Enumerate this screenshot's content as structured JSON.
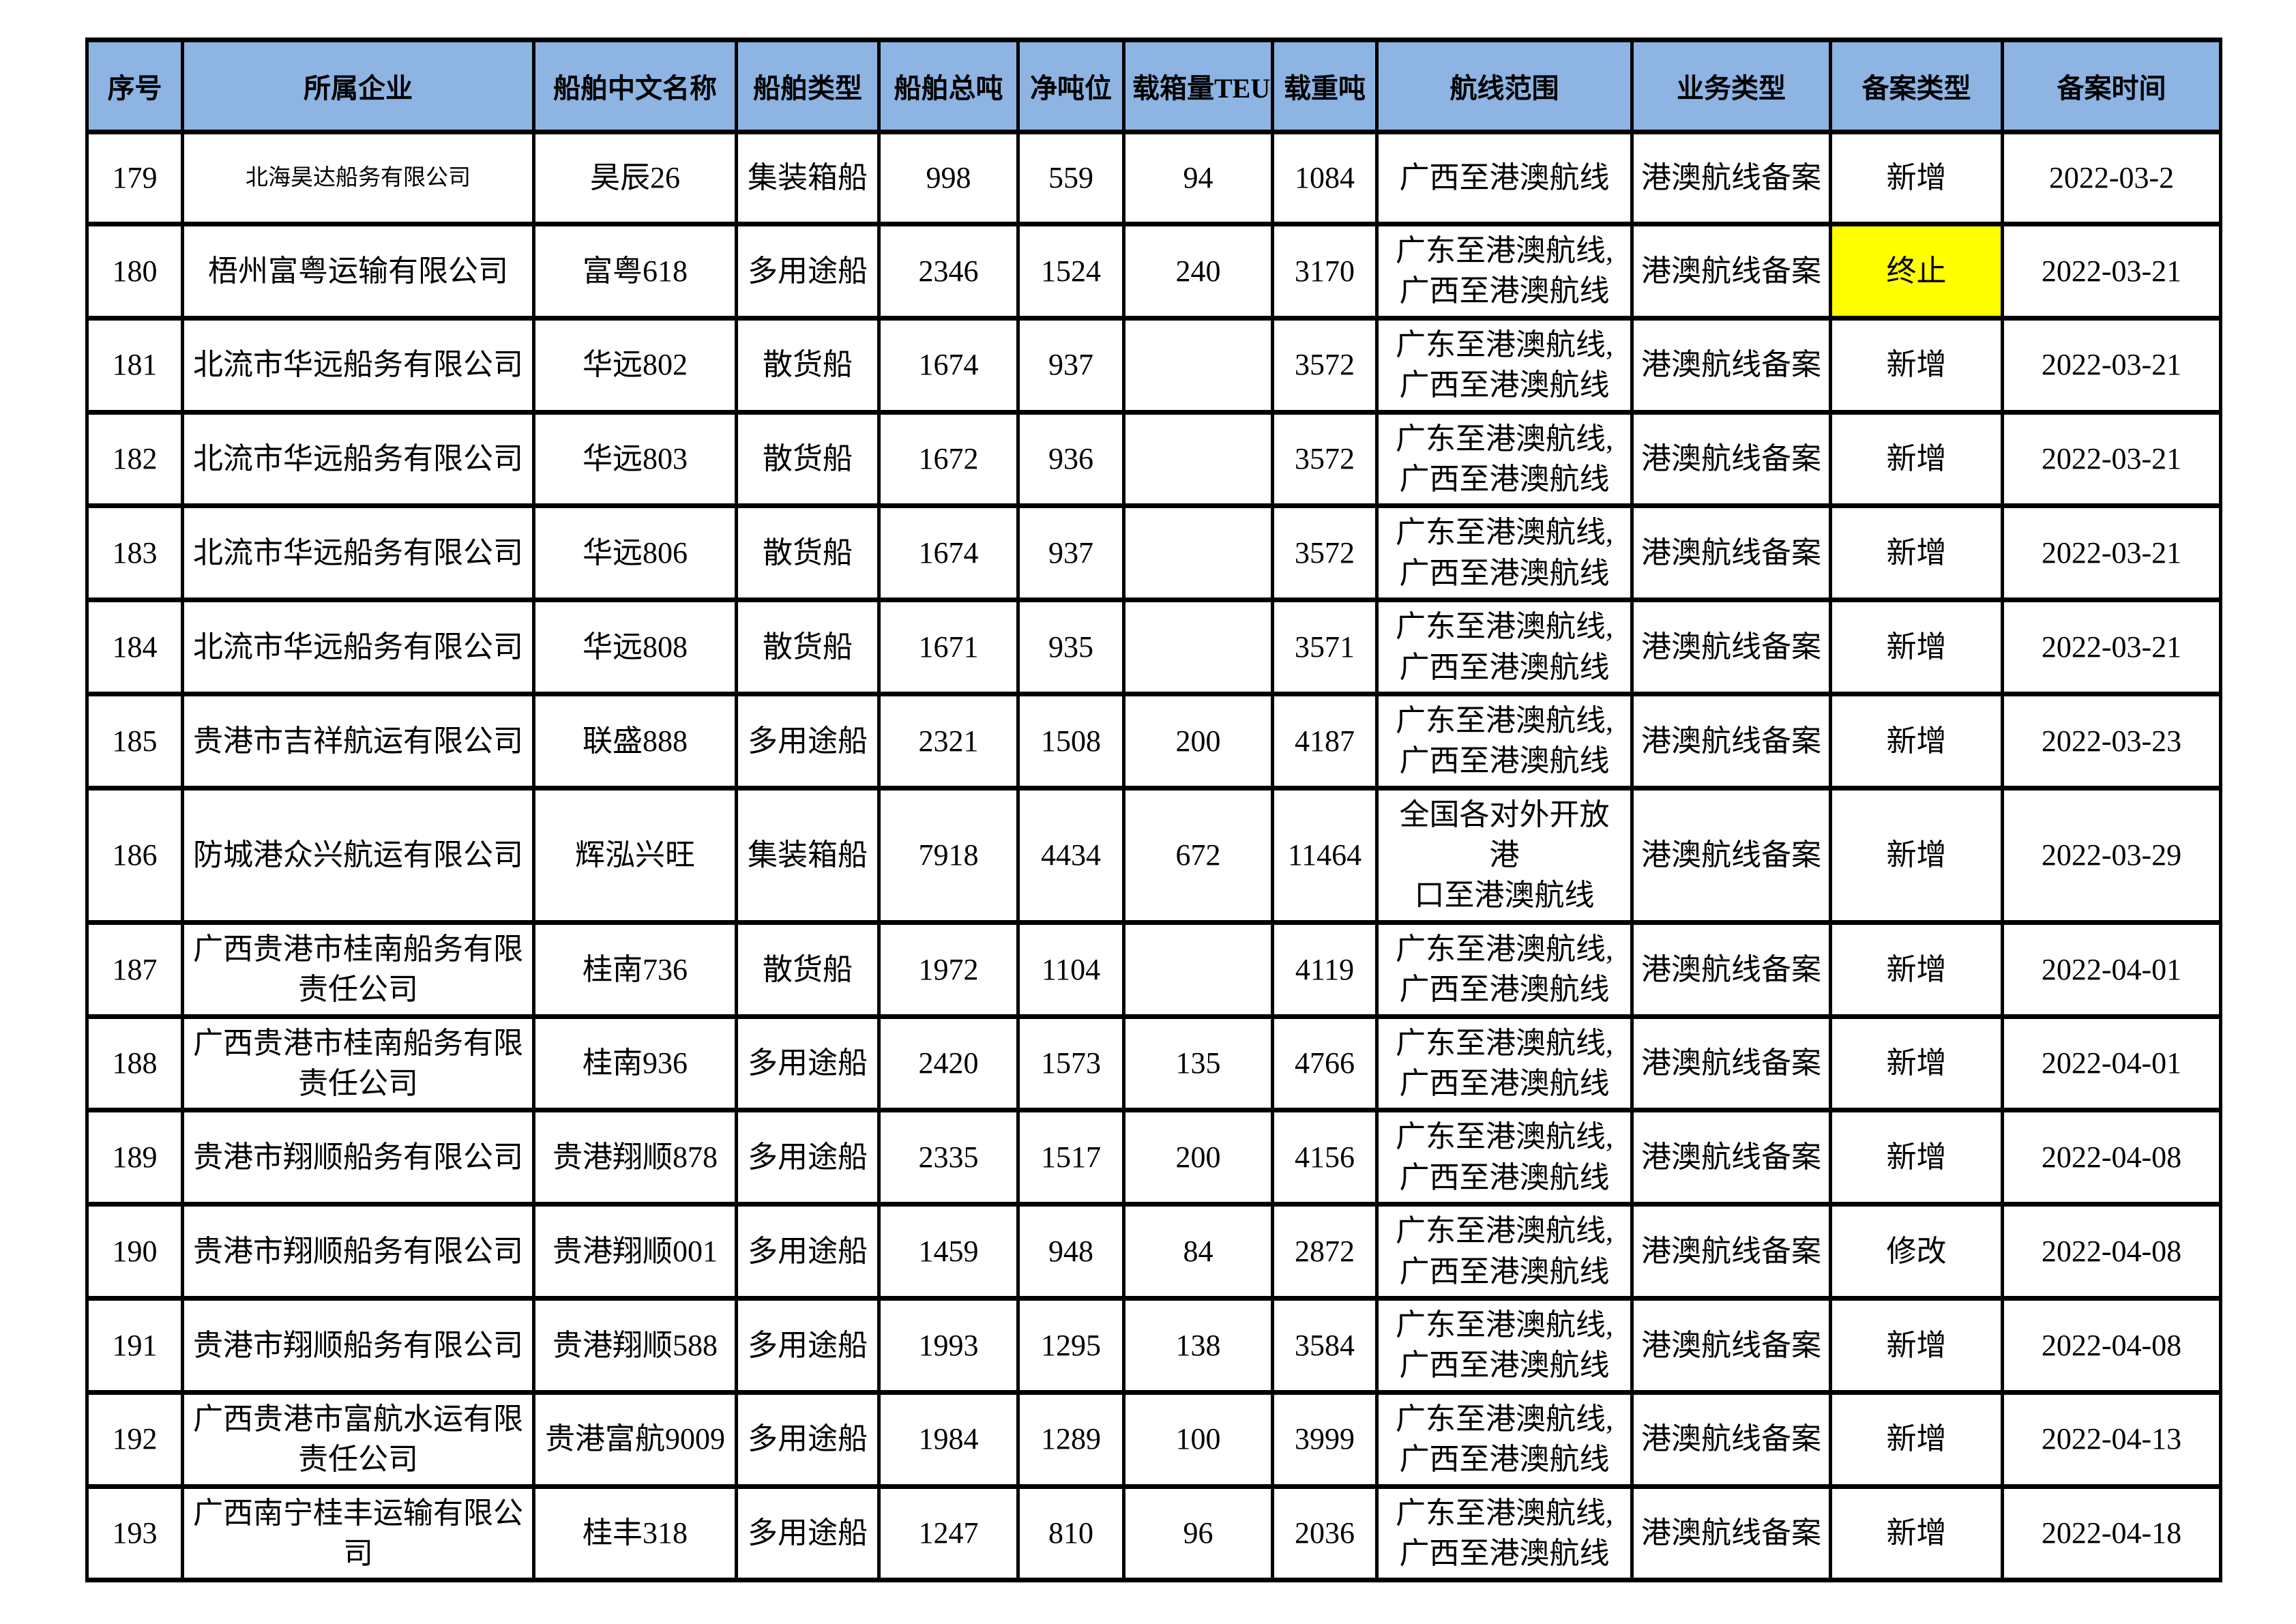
{
  "table": {
    "header_bg": "#8DB4E2",
    "highlight_color": "#FFFF00",
    "headers": [
      {
        "key": "seq",
        "label": "序号"
      },
      {
        "key": "company",
        "label": "所属企业"
      },
      {
        "key": "ship_name",
        "label": "船舶中文名称"
      },
      {
        "key": "ship_type",
        "label": "船舶类型"
      },
      {
        "key": "gross_tonnage",
        "label": "船舶总吨"
      },
      {
        "key": "net_tonnage",
        "label": "净吨位"
      },
      {
        "key": "teu",
        "label": "载箱量TEU"
      },
      {
        "key": "deadweight",
        "label": "载重吨"
      },
      {
        "key": "route",
        "label": "航线范围"
      },
      {
        "key": "business_type",
        "label": "业务类型"
      },
      {
        "key": "filing_type",
        "label": "备案类型"
      },
      {
        "key": "filing_date",
        "label": "备案时间"
      }
    ],
    "rows": [
      {
        "seq": "179",
        "company": "北海昊达船务有限公司",
        "company_small": true,
        "ship_name": "昊辰26",
        "ship_type": "集装箱船",
        "gross_tonnage": "998",
        "net_tonnage": "559",
        "teu": "94",
        "deadweight": "1084",
        "route": "广西至港澳航线",
        "business_type": "港澳航线备案",
        "filing_type": "新增",
        "filing_highlight": false,
        "filing_date": "2022-03-2"
      },
      {
        "seq": "180",
        "company": "梧州富粤运输有限公司",
        "company_small": false,
        "ship_name": "富粤618",
        "ship_type": "多用途船",
        "gross_tonnage": "2346",
        "net_tonnage": "1524",
        "teu": "240",
        "deadweight": "3170",
        "route": "广东至港澳航线,\n广西至港澳航线",
        "business_type": "港澳航线备案",
        "filing_type": "终止",
        "filing_highlight": true,
        "filing_date": "2022-03-21"
      },
      {
        "seq": "181",
        "company": "北流市华远船务有限公司",
        "company_small": false,
        "ship_name": "华远802",
        "ship_type": "散货船",
        "gross_tonnage": "1674",
        "net_tonnage": "937",
        "teu": "",
        "deadweight": "3572",
        "route": "广东至港澳航线,\n广西至港澳航线",
        "business_type": "港澳航线备案",
        "filing_type": "新增",
        "filing_highlight": false,
        "filing_date": "2022-03-21"
      },
      {
        "seq": "182",
        "company": "北流市华远船务有限公司",
        "company_small": false,
        "ship_name": "华远803",
        "ship_type": "散货船",
        "gross_tonnage": "1672",
        "net_tonnage": "936",
        "teu": "",
        "deadweight": "3572",
        "route": "广东至港澳航线,\n广西至港澳航线",
        "business_type": "港澳航线备案",
        "filing_type": "新增",
        "filing_highlight": false,
        "filing_date": "2022-03-21"
      },
      {
        "seq": "183",
        "company": "北流市华远船务有限公司",
        "company_small": false,
        "ship_name": "华远806",
        "ship_type": "散货船",
        "gross_tonnage": "1674",
        "net_tonnage": "937",
        "teu": "",
        "deadweight": "3572",
        "route": "广东至港澳航线,\n广西至港澳航线",
        "business_type": "港澳航线备案",
        "filing_type": "新增",
        "filing_highlight": false,
        "filing_date": "2022-03-21"
      },
      {
        "seq": "184",
        "company": "北流市华远船务有限公司",
        "company_small": false,
        "ship_name": "华远808",
        "ship_type": "散货船",
        "gross_tonnage": "1671",
        "net_tonnage": "935",
        "teu": "",
        "deadweight": "3571",
        "route": "广东至港澳航线,\n广西至港澳航线",
        "business_type": "港澳航线备案",
        "filing_type": "新增",
        "filing_highlight": false,
        "filing_date": "2022-03-21"
      },
      {
        "seq": "185",
        "company": "贵港市吉祥航运有限公司",
        "company_small": false,
        "ship_name": "联盛888",
        "ship_type": "多用途船",
        "gross_tonnage": "2321",
        "net_tonnage": "1508",
        "teu": "200",
        "deadweight": "4187",
        "route": "广东至港澳航线,\n广西至港澳航线",
        "business_type": "港澳航线备案",
        "filing_type": "新增",
        "filing_highlight": false,
        "filing_date": "2022-03-23"
      },
      {
        "seq": "186",
        "company": "防城港众兴航运有限公司",
        "company_small": false,
        "ship_name": "辉泓兴旺",
        "ship_type": "集装箱船",
        "gross_tonnage": "7918",
        "net_tonnage": "4434",
        "teu": "672",
        "deadweight": "11464",
        "route": "全国各对外开放港\n口至港澳航线",
        "business_type": "港澳航线备案",
        "filing_type": "新增",
        "filing_highlight": false,
        "filing_date": "2022-03-29"
      },
      {
        "seq": "187",
        "company": "广西贵港市桂南船务有限\n责任公司",
        "company_small": false,
        "ship_name": "桂南736",
        "ship_type": "散货船",
        "gross_tonnage": "1972",
        "net_tonnage": "1104",
        "teu": "",
        "deadweight": "4119",
        "route": "广东至港澳航线,\n广西至港澳航线",
        "business_type": "港澳航线备案",
        "filing_type": "新增",
        "filing_highlight": false,
        "filing_date": "2022-04-01"
      },
      {
        "seq": "188",
        "company": "广西贵港市桂南船务有限\n责任公司",
        "company_small": false,
        "ship_name": "桂南936",
        "ship_type": "多用途船",
        "gross_tonnage": "2420",
        "net_tonnage": "1573",
        "teu": "135",
        "deadweight": "4766",
        "route": "广东至港澳航线,\n广西至港澳航线",
        "business_type": "港澳航线备案",
        "filing_type": "新增",
        "filing_highlight": false,
        "filing_date": "2022-04-01"
      },
      {
        "seq": "189",
        "company": "贵港市翔顺船务有限公司",
        "company_small": false,
        "ship_name": "贵港翔顺878",
        "ship_type": "多用途船",
        "gross_tonnage": "2335",
        "net_tonnage": "1517",
        "teu": "200",
        "deadweight": "4156",
        "route": "广东至港澳航线,\n广西至港澳航线",
        "business_type": "港澳航线备案",
        "filing_type": "新增",
        "filing_highlight": false,
        "filing_date": "2022-04-08"
      },
      {
        "seq": "190",
        "company": "贵港市翔顺船务有限公司",
        "company_small": false,
        "ship_name": "贵港翔顺001",
        "ship_type": "多用途船",
        "gross_tonnage": "1459",
        "net_tonnage": "948",
        "teu": "84",
        "deadweight": "2872",
        "route": "广东至港澳航线,\n广西至港澳航线",
        "business_type": "港澳航线备案",
        "filing_type": "修改",
        "filing_highlight": false,
        "filing_date": "2022-04-08"
      },
      {
        "seq": "191",
        "company": "贵港市翔顺船务有限公司",
        "company_small": false,
        "ship_name": "贵港翔顺588",
        "ship_type": "多用途船",
        "gross_tonnage": "1993",
        "net_tonnage": "1295",
        "teu": "138",
        "deadweight": "3584",
        "route": "广东至港澳航线,\n广西至港澳航线",
        "business_type": "港澳航线备案",
        "filing_type": "新增",
        "filing_highlight": false,
        "filing_date": "2022-04-08"
      },
      {
        "seq": "192",
        "company": "广西贵港市富航水运有限\n责任公司",
        "company_small": false,
        "ship_name": "贵港富航9009",
        "ship_type": "多用途船",
        "gross_tonnage": "1984",
        "net_tonnage": "1289",
        "teu": "100",
        "deadweight": "3999",
        "route": "广东至港澳航线,\n广西至港澳航线",
        "business_type": "港澳航线备案",
        "filing_type": "新增",
        "filing_highlight": false,
        "filing_date": "2022-04-13"
      },
      {
        "seq": "193",
        "company": "广西南宁桂丰运输有限公\n司",
        "company_small": false,
        "ship_name": "桂丰318",
        "ship_type": "多用途船",
        "gross_tonnage": "1247",
        "net_tonnage": "810",
        "teu": "96",
        "deadweight": "2036",
        "route": "广东至港澳航线,\n广西至港澳航线",
        "business_type": "港澳航线备案",
        "filing_type": "新增",
        "filing_highlight": false,
        "filing_date": "2022-04-18"
      }
    ]
  }
}
